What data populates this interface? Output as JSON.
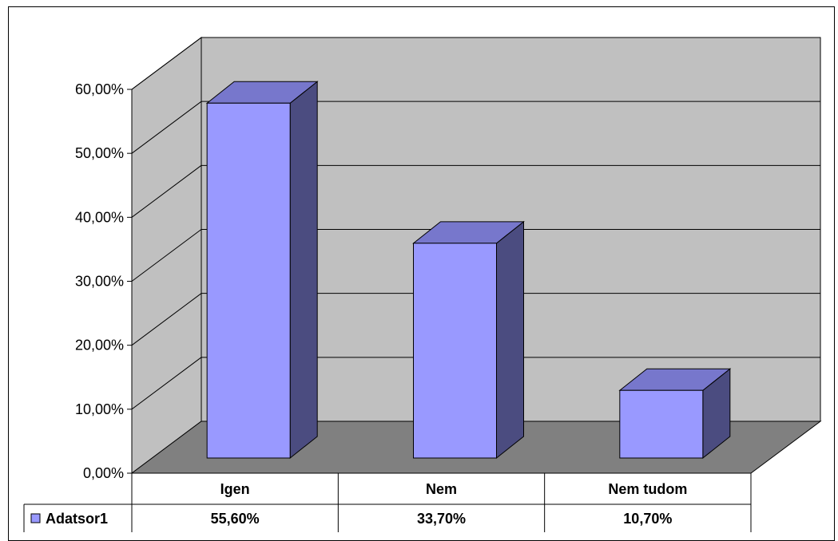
{
  "chart_data": {
    "type": "bar",
    "categories": [
      "Igen",
      "Nem",
      "Nem tudom"
    ],
    "series": [
      {
        "name": "Adatsor1",
        "values": [
          55.6,
          33.7,
          10.7
        ],
        "labels": [
          "55,60%",
          "33,70%",
          "10,70%"
        ]
      }
    ],
    "yticks": [
      "0,00%",
      "10,00%",
      "20,00%",
      "30,00%",
      "40,00%",
      "50,00%",
      "60,00%"
    ],
    "ylim": [
      0,
      60
    ],
    "grid": true,
    "legend": "data-table-left",
    "style": "3d-column",
    "colors": {
      "bar_front": "#9999FF",
      "bar_top": "#7777CC",
      "bar_side": "#4B4C80",
      "back_wall": "#C0C0C0",
      "side_wall": "#C0C0C0",
      "floor": "#808080"
    }
  }
}
